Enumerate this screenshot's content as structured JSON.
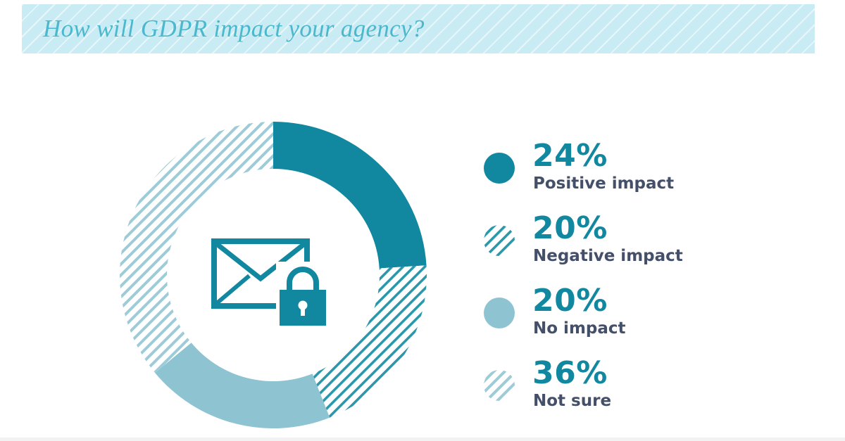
{
  "title": "How will GDPR impact your agency?",
  "colors": {
    "positive": "#11889f",
    "negative_hatch": "#2a97ab",
    "no_impact": "#8ec3d2",
    "not_sure_hatch": "#9ecbd8",
    "title_band": "#c9ebf3",
    "title_text": "#4cb8cd",
    "label_text": "#44506a"
  },
  "center_icon": "envelope-lock-icon",
  "legend": [
    {
      "percent": "24%",
      "label": "Positive impact",
      "marker": "solid-dark"
    },
    {
      "percent": "20%",
      "label": "Negative impact",
      "marker": "hatched-dark"
    },
    {
      "percent": "20%",
      "label": "No impact",
      "marker": "solid-light"
    },
    {
      "percent": "36%",
      "label": "Not sure",
      "marker": "hatched-light"
    }
  ],
  "chart_data": {
    "type": "pie",
    "title": "How will GDPR impact your agency?",
    "categories": [
      "Positive impact",
      "Negative impact",
      "No impact",
      "Not sure"
    ],
    "values": [
      24,
      20,
      20,
      36
    ],
    "unit": "%",
    "donut": true,
    "legend_position": "right"
  }
}
